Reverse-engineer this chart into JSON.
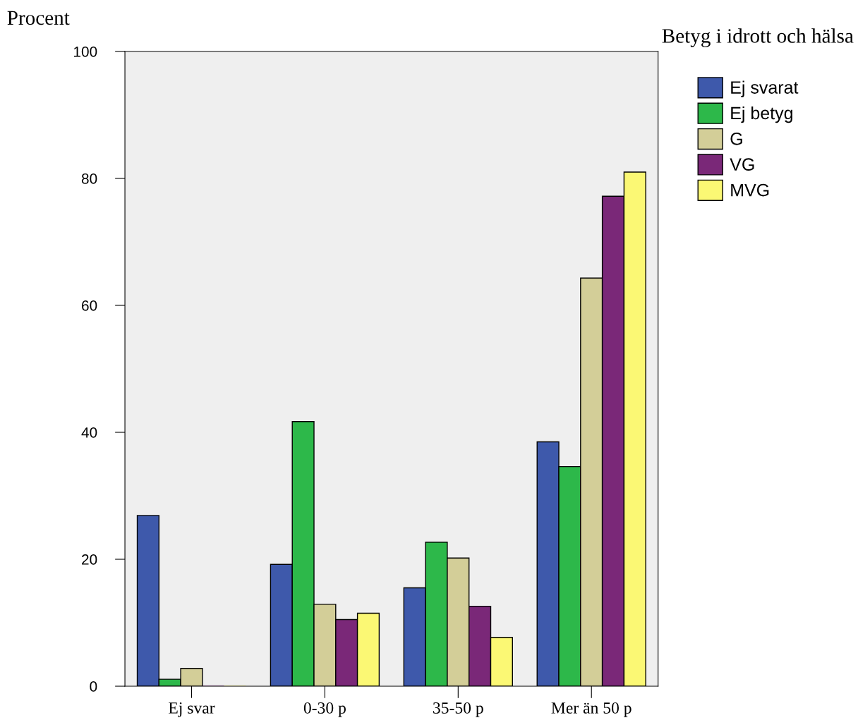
{
  "chart_data": {
    "type": "bar",
    "ylabel": "Procent",
    "legend_title": "Betyg i idrott och hälsa",
    "legend": "top right",
    "grid": false,
    "categories": [
      "Ej svar",
      "0-30 p",
      "35-50 p",
      "Mer än 50 p"
    ],
    "ylim": [
      0,
      100
    ],
    "yticks": [
      0,
      20,
      40,
      60,
      80,
      100
    ],
    "series": [
      {
        "name": "Ej svarat",
        "color": "#3e59ab",
        "values": [
          26.9,
          19.2,
          15.5,
          38.5
        ]
      },
      {
        "name": "Ej betyg",
        "color": "#2db84a",
        "values": [
          1.1,
          41.7,
          22.7,
          34.6
        ]
      },
      {
        "name": "G",
        "color": "#d3ce98",
        "values": [
          2.8,
          12.9,
          20.2,
          64.3
        ]
      },
      {
        "name": "VG",
        "color": "#7a2878",
        "values": [
          0,
          10.5,
          12.6,
          77.2
        ]
      },
      {
        "name": "MVG",
        "color": "#fbf874",
        "values": [
          0,
          11.5,
          7.7,
          81.0
        ]
      }
    ]
  }
}
